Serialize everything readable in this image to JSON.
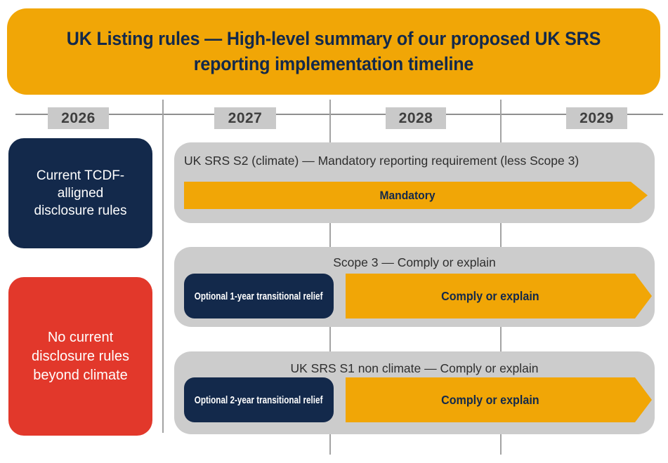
{
  "banner": {
    "title": "UK Listing rules — High-level summary of our proposed UK SRS reporting implementation timeline"
  },
  "timeline": {
    "years": [
      "2026",
      "2027",
      "2028",
      "2029"
    ]
  },
  "left_boxes": {
    "current_rules": {
      "label": "Current TCDF-alligned disclosure rules"
    },
    "no_rules": {
      "label": "No current disclosure rules beyond climate"
    }
  },
  "panels": [
    {
      "header": "UK SRS S2 (climate) — Mandatory reporting requirement (less Scope 3)",
      "arrow_label": "Mandatory"
    },
    {
      "header": "Scope 3 — Comply or explain",
      "pill_label": "Optional 1-year transitional relief",
      "arrow_label": "Comply or explain"
    },
    {
      "header": "UK SRS S1 non climate — Comply or explain",
      "pill_label": "Optional 2-year transitional relief",
      "arrow_label": "Comply or explain"
    }
  ],
  "colors": {
    "amber": "#F1A606",
    "navy": "#13294B",
    "red": "#E2382B",
    "panel_gray": "#CCCCCC",
    "year_box_gray": "#C9C9C9",
    "line_gray": "#8F8F8F"
  }
}
